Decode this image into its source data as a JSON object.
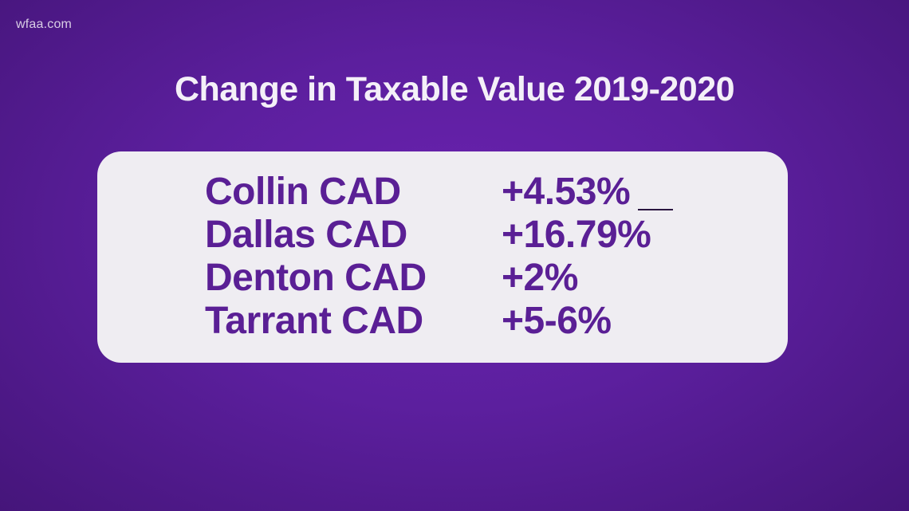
{
  "watermark": "wfaa.com",
  "title": "Change in Taxable Value 2019-2020",
  "rows": [
    {
      "name": "Collin CAD",
      "value": "+4.53%"
    },
    {
      "name": "Dallas CAD",
      "value": "+16.79%"
    },
    {
      "name": "Denton CAD",
      "value": "+2%"
    },
    {
      "name": "Tarrant CAD",
      "value": "+5-6%"
    }
  ],
  "colors": {
    "background": "#5c1f9e",
    "card": "#efedf2",
    "text_accent": "#5a1f95",
    "title_text": "#f4f0f8"
  }
}
